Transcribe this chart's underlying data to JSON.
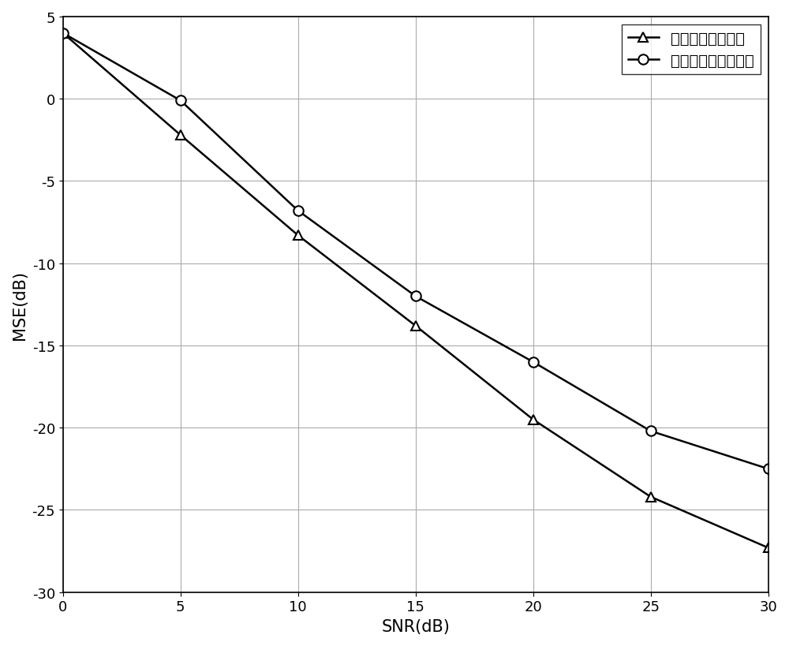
{
  "snr": [
    0,
    5,
    10,
    15,
    20,
    25,
    30
  ],
  "mse_proposed": [
    4.0,
    -2.2,
    -8.3,
    -13.8,
    -19.5,
    -24.2,
    -27.3
  ],
  "mse_pilot": [
    4.0,
    -0.1,
    -6.8,
    -12.0,
    -16.0,
    -20.2,
    -22.5
  ],
  "label_proposed": "本发明提出的方法",
  "label_pilot": "基于导频的信道估计",
  "xlabel": "SNR(dB)",
  "ylabel": "MSE(dB)",
  "xlim": [
    0,
    30
  ],
  "ylim": [
    -30,
    5
  ],
  "xticks": [
    0,
    5,
    10,
    15,
    20,
    25,
    30
  ],
  "yticks": [
    -30,
    -25,
    -20,
    -15,
    -10,
    -5,
    0,
    5
  ],
  "line_color": "#000000",
  "marker_proposed": "^",
  "marker_pilot": "o",
  "marker_size": 9,
  "linewidth": 1.8,
  "grid_color": "#aaaaaa",
  "background_color": "#ffffff",
  "legend_fontsize": 14,
  "axis_fontsize": 15,
  "tick_fontsize": 13
}
